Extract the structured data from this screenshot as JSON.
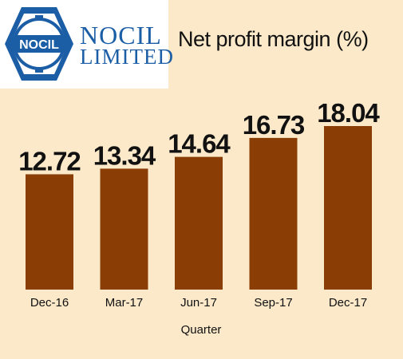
{
  "brand": {
    "name_line1": "NOCIL",
    "name_line2": "LIMITED",
    "badge_text": "NOCIL",
    "color": "#1c5ea6"
  },
  "colors": {
    "background": "#fbe9c9",
    "bar": "#8a3e06"
  },
  "chart_data": {
    "type": "bar",
    "title": "Net profit margin (%)",
    "xlabel": "Quarter",
    "ylabel": "",
    "categories": [
      "Dec-16",
      "Mar-17",
      "Jun-17",
      "Sep-17",
      "Dec-17"
    ],
    "values": [
      12.72,
      13.34,
      14.64,
      16.73,
      18.04
    ],
    "value_labels": [
      "12.72",
      "13.34",
      "14.64",
      "16.73",
      "18.04"
    ],
    "ylim": [
      0,
      18.04
    ],
    "grid": false,
    "legend": "none"
  }
}
